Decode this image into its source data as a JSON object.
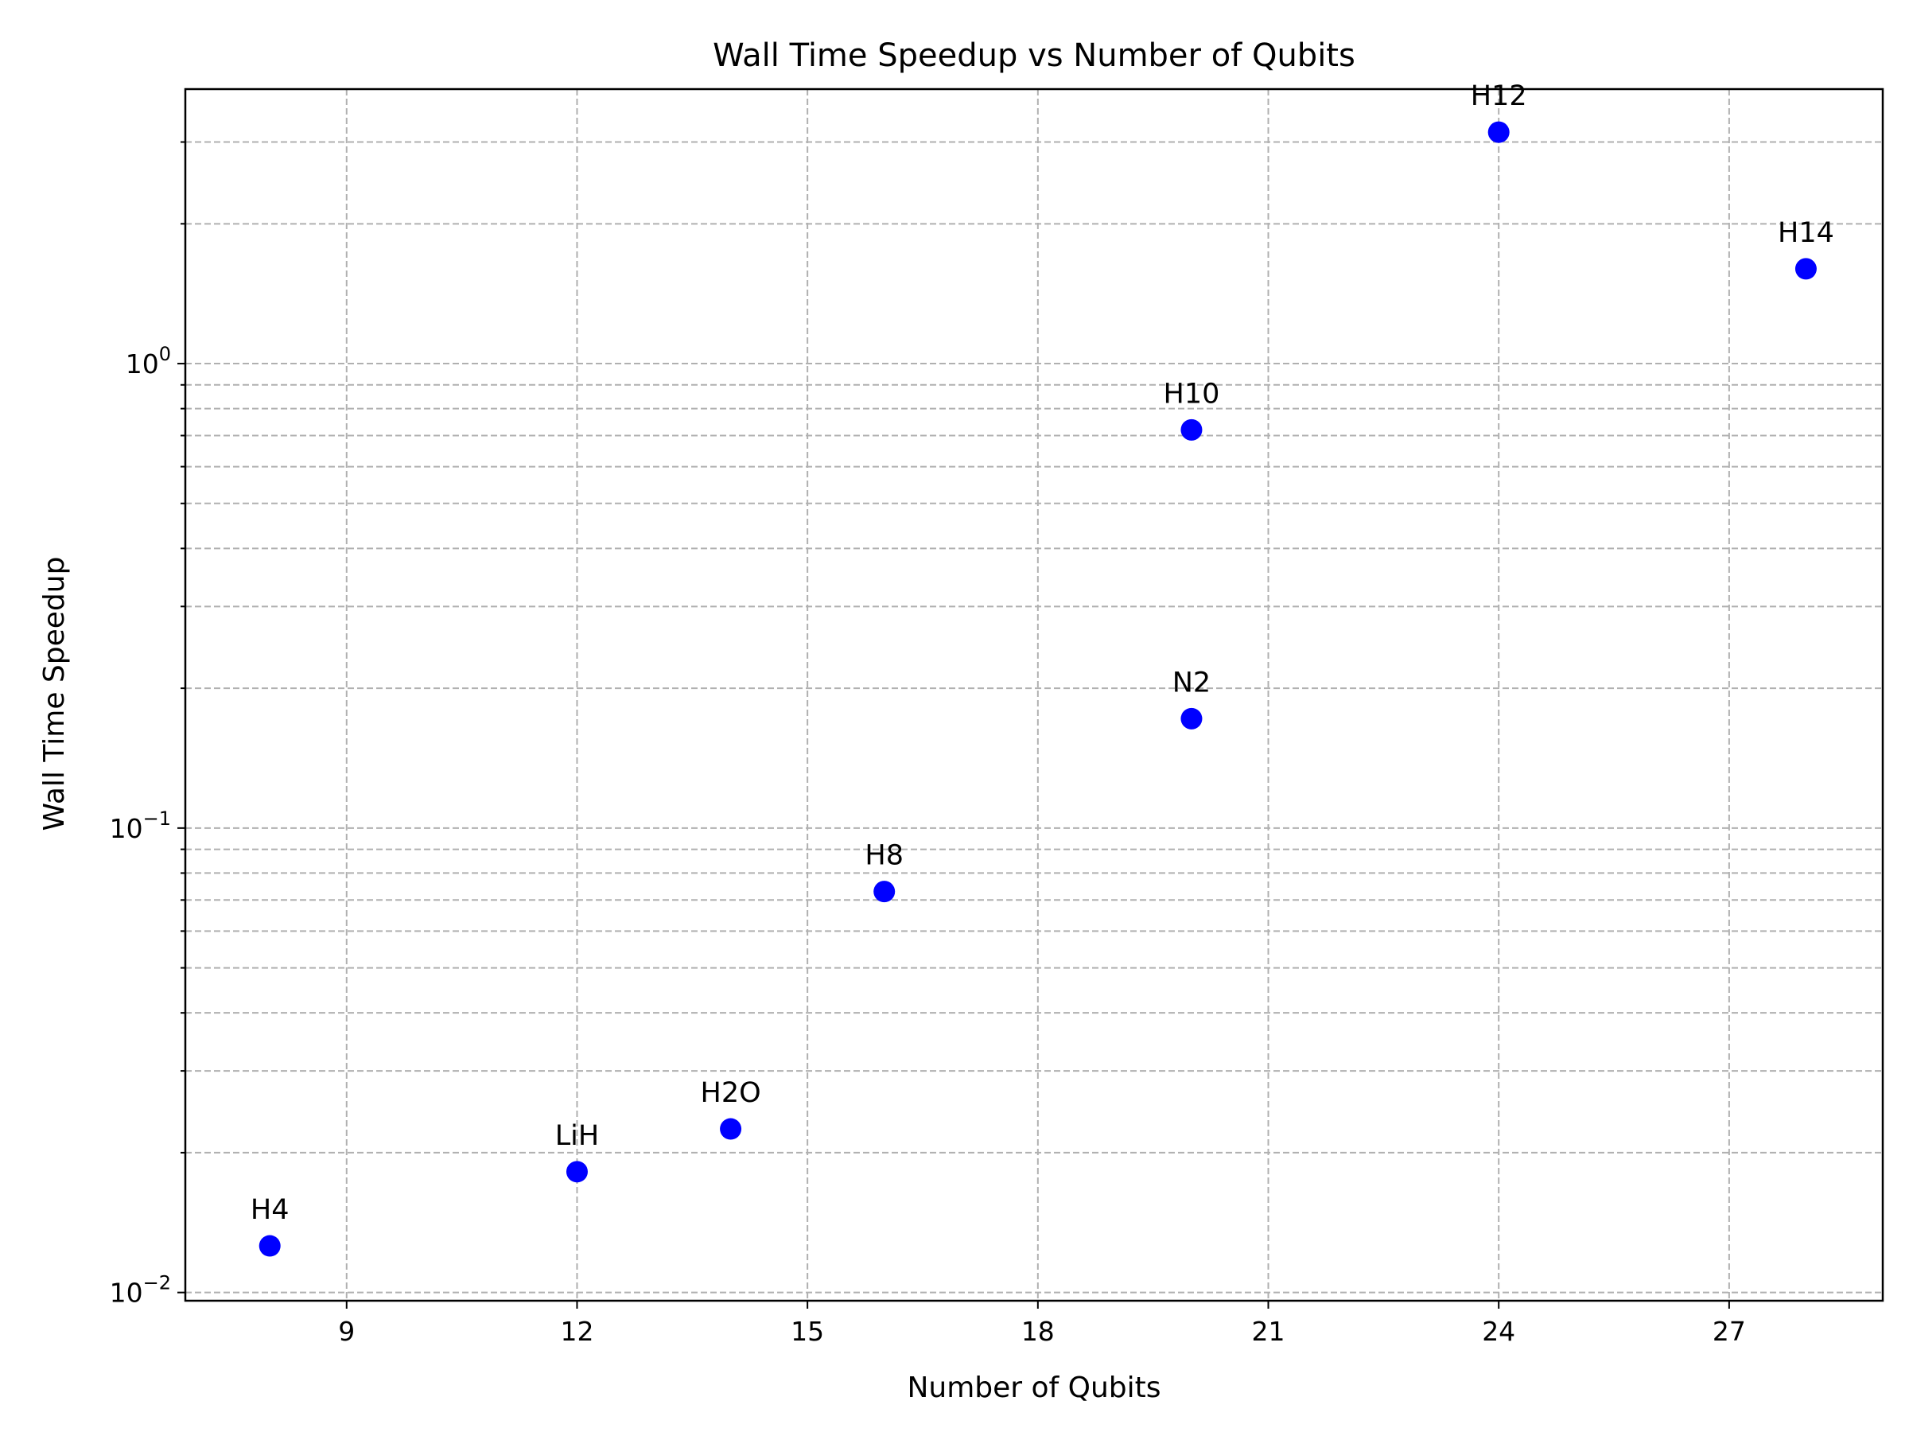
{
  "chart_data": {
    "type": "scatter",
    "title": "Wall Time Speedup vs Number of Qubits",
    "xlabel": "Number of Qubits",
    "ylabel": "Wall Time Speedup",
    "yscale": "log",
    "xlim": [
      6.9,
      29.0
    ],
    "ylim": [
      0.0096,
      3.9
    ],
    "x_ticks": [
      9,
      12,
      15,
      18,
      21,
      24,
      27
    ],
    "y_ticks": [
      {
        "value": 0.01,
        "base": "10",
        "exp": "−2"
      },
      {
        "value": 0.1,
        "base": "10",
        "exp": "−1"
      },
      {
        "value": 1,
        "base": "10",
        "exp": "0"
      }
    ],
    "grid": true,
    "marker_color": "#0000ff",
    "points": [
      {
        "label": "H4",
        "x": 8,
        "y": 0.0126
      },
      {
        "label": "LiH",
        "x": 12,
        "y": 0.0182
      },
      {
        "label": "H2O",
        "x": 14,
        "y": 0.0225
      },
      {
        "label": "H8",
        "x": 16,
        "y": 0.073
      },
      {
        "label": "N2",
        "x": 20,
        "y": 0.172
      },
      {
        "label": "H10",
        "x": 20,
        "y": 0.72
      },
      {
        "label": "H12",
        "x": 24,
        "y": 3.15
      },
      {
        "label": "H14",
        "x": 28,
        "y": 1.6
      }
    ]
  }
}
